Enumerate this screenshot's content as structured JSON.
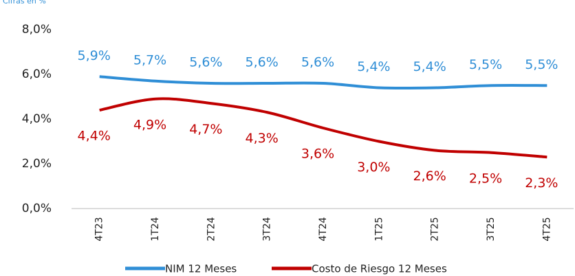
{
  "chart_data": {
    "type": "line",
    "subtitle": "Cifras en %",
    "categories": [
      "4T23",
      "1T24",
      "2T24",
      "3T24",
      "4T24",
      "1T25",
      "2T25",
      "3T25",
      "4T25"
    ],
    "series": [
      {
        "name": "NIM 12 Meses",
        "color": "#2f8ed6",
        "values": [
          5.9,
          5.7,
          5.6,
          5.6,
          5.6,
          5.4,
          5.4,
          5.5,
          5.5
        ],
        "value_labels": [
          "5,9%",
          "5,7%",
          "5,6%",
          "5,6%",
          "5,6%",
          "5,4%",
          "5,4%",
          "5,5%",
          "5,5%"
        ]
      },
      {
        "name": "Costo de Riesgo 12 Meses",
        "color": "#c00000",
        "values": [
          4.4,
          4.9,
          4.7,
          4.3,
          3.6,
          3.0,
          2.6,
          2.5,
          2.3
        ],
        "value_labels": [
          "4,4%",
          "4,9%",
          "4,7%",
          "4,3%",
          "3,6%",
          "3,0%",
          "2,6%",
          "2,5%",
          "2,3%"
        ]
      }
    ],
    "ylim": [
      0,
      8
    ],
    "yticks": [
      {
        "value": 0,
        "label": "0,0%"
      },
      {
        "value": 2,
        "label": "2,0%"
      },
      {
        "value": 4,
        "label": "4,0%"
      },
      {
        "value": 6,
        "label": "6,0%"
      },
      {
        "value": 8,
        "label": "8,0%"
      }
    ],
    "grid": false,
    "legend": "bottom"
  }
}
